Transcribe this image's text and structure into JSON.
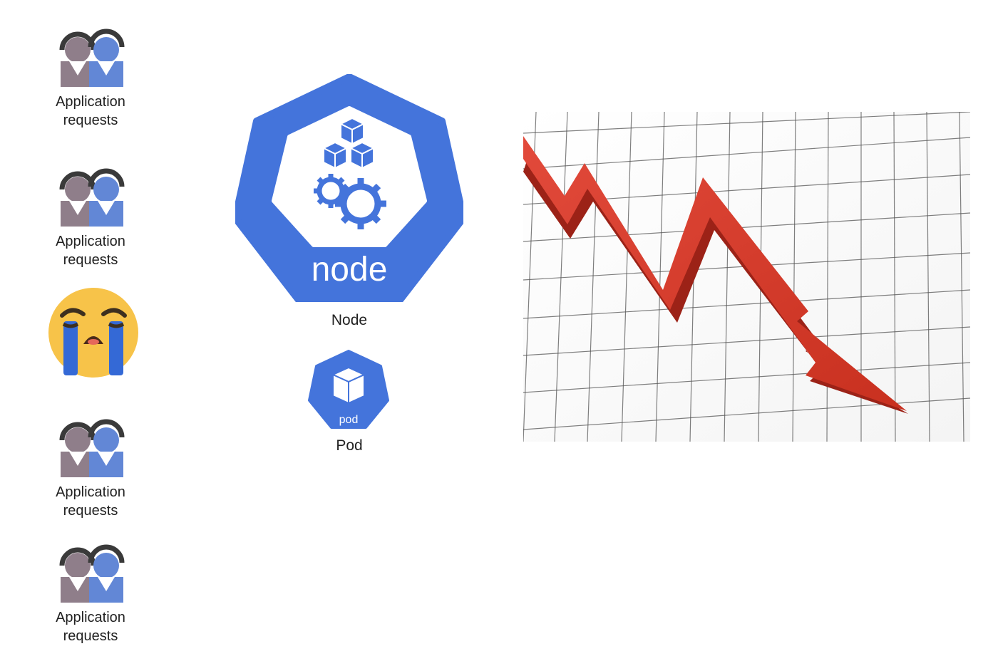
{
  "users": [
    {
      "label": "Application requests"
    },
    {
      "label": "Application requests"
    },
    {
      "label": "Application requests"
    },
    {
      "label": "Application requests"
    }
  ],
  "node": {
    "icon_text": "node",
    "caption": "Node"
  },
  "pod": {
    "icon_text": "pod",
    "caption": "Pod"
  },
  "emoji": "crying-face",
  "colors": {
    "kubernetes_blue": "#4474DB",
    "arrow_red": "#D13B2E",
    "user_gray": "#8F7E8A",
    "user_blue": "#6287D6",
    "emoji_yellow": "#F7C349"
  }
}
